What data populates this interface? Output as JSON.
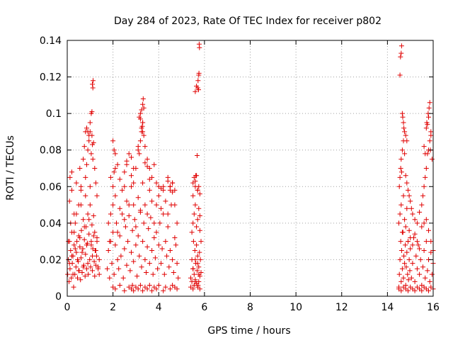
{
  "chart_data": {
    "type": "scatter",
    "title": "Day 284 of 2023, Rate Of TEC Index for receiver p802",
    "xlabel": "GPS time / hours",
    "ylabel": "ROTI / TECUs",
    "xlim": [
      0,
      16
    ],
    "ylim": [
      0,
      0.14
    ],
    "x_ticks": [
      0,
      2,
      4,
      6,
      8,
      10,
      12,
      14,
      16
    ],
    "x_tick_labels": [
      "0",
      "2",
      "4",
      "6",
      "8",
      "10",
      "12",
      "14",
      "16"
    ],
    "y_ticks": [
      0,
      0.02,
      0.04,
      0.06,
      0.08,
      0.1,
      0.12,
      0.14
    ],
    "y_tick_labels": [
      "0",
      "0.02",
      "0.04",
      "0.06",
      "0.08",
      "0.1",
      "0.12",
      "0.14"
    ],
    "grid": true,
    "marker": "+",
    "marker_color": "#e00000",
    "series": [
      {
        "name": "ROTI",
        "description_hint": "dense point clusters; values read from plot",
        "x": [
          0.02,
          0.05,
          0.08,
          0.1,
          0.12,
          0.15,
          0.18,
          0.2,
          0.22,
          0.25,
          0.28,
          0.3,
          0.33,
          0.35,
          0.38,
          0.4,
          0.42,
          0.45,
          0.48,
          0.5,
          0.52,
          0.55,
          0.58,
          0.6,
          0.62,
          0.65,
          0.68,
          0.7,
          0.72,
          0.75,
          0.78,
          0.8,
          0.82,
          0.85,
          0.88,
          0.9,
          0.92,
          0.95,
          0.98,
          1.0,
          1.02,
          1.05,
          1.08,
          1.1,
          1.12,
          1.15,
          1.18,
          1.2,
          1.22,
          1.25,
          1.28,
          1.3,
          1.35,
          1.4,
          0.05,
          0.1,
          0.15,
          0.2,
          0.25,
          0.3,
          0.35,
          0.4,
          0.45,
          0.5,
          0.55,
          0.6,
          0.65,
          0.7,
          0.75,
          0.8,
          0.85,
          0.9,
          0.95,
          1.0,
          1.05,
          1.1,
          1.15,
          1.2,
          1.25,
          1.3,
          1.35,
          1.4,
          0.1,
          0.2,
          0.3,
          0.5,
          0.6,
          0.8,
          0.85,
          0.9,
          0.95,
          1.0,
          1.05,
          1.08,
          1.1,
          1.12,
          1.2,
          1.25,
          1.3,
          1.1,
          1.12,
          1.13,
          1.05,
          1.08,
          0.85,
          0.9,
          0.95,
          1.0,
          1.15,
          0.12,
          0.2,
          0.4,
          0.55,
          0.6,
          0.7,
          0.75,
          0.8,
          1.75,
          1.8,
          1.85,
          1.9,
          1.95,
          2.0,
          2.05,
          2.1,
          2.15,
          2.2,
          2.25,
          2.3,
          2.35,
          2.4,
          2.45,
          2.5,
          2.55,
          2.6,
          2.65,
          2.7,
          2.75,
          2.8,
          2.85,
          2.9,
          2.95,
          3.0,
          3.05,
          3.1,
          3.15,
          3.2,
          3.25,
          3.3,
          3.35,
          3.4,
          3.45,
          3.5,
          3.55,
          3.6,
          3.65,
          3.7,
          3.75,
          3.8,
          3.85,
          3.9,
          3.95,
          4.0,
          4.05,
          4.1,
          4.15,
          4.2,
          4.25,
          4.3,
          4.35,
          4.4,
          4.45,
          4.5,
          4.55,
          4.6,
          4.65,
          4.7,
          4.75,
          4.8,
          4.85,
          1.8,
          1.85,
          1.9,
          2.0,
          2.1,
          2.2,
          2.3,
          2.4,
          2.5,
          2.6,
          2.7,
          2.8,
          2.9,
          3.0,
          3.1,
          3.2,
          3.3,
          3.4,
          3.5,
          3.6,
          3.7,
          3.8,
          3.9,
          4.0,
          4.1,
          4.2,
          4.3,
          4.4,
          4.5,
          4.6,
          4.7,
          4.8,
          1.9,
          2.0,
          2.05,
          2.1,
          2.3,
          2.5,
          2.6,
          2.7,
          2.8,
          2.9,
          3.0,
          3.1,
          3.15,
          3.2,
          3.25,
          3.3,
          3.35,
          3.4,
          3.5,
          3.6,
          3.7,
          3.8,
          4.0,
          4.2,
          4.4,
          4.5,
          4.6,
          4.7,
          2.0,
          2.05,
          2.1,
          2.2,
          2.5,
          2.6,
          2.8,
          2.9,
          3.1,
          3.15,
          3.2,
          3.25,
          3.3,
          3.32,
          3.35,
          3.3,
          3.25,
          3.2,
          3.28,
          3.3,
          3.4,
          3.5,
          3.6,
          3.9,
          4.1,
          4.4,
          4.5,
          4.6,
          2.0,
          2.1,
          2.3,
          2.5,
          2.7,
          2.8,
          2.85,
          2.9,
          3.0,
          3.1,
          3.2,
          3.3,
          3.4,
          3.5,
          3.6,
          3.7,
          3.8,
          3.9,
          4.0,
          4.2,
          4.3,
          4.5,
          4.6,
          4.7,
          4.8,
          5.4,
          5.45,
          5.5,
          5.52,
          5.55,
          5.58,
          5.6,
          5.62,
          5.65,
          5.68,
          5.7,
          5.72,
          5.75,
          5.78,
          5.8,
          5.82,
          5.85,
          5.45,
          5.5,
          5.55,
          5.6,
          5.65,
          5.7,
          5.75,
          5.8,
          5.85,
          5.5,
          5.6,
          5.7,
          5.8,
          5.5,
          5.55,
          5.6,
          5.65,
          5.7,
          5.75,
          5.8,
          5.6,
          5.65,
          5.7,
          5.72,
          5.75,
          5.76,
          5.78,
          5.77,
          5.74,
          5.68,
          5.62,
          5.4,
          5.45,
          5.5,
          5.55,
          5.6,
          5.65,
          5.7,
          5.75,
          5.8,
          5.5,
          5.6,
          5.7,
          5.75,
          14.5,
          14.52,
          14.55,
          14.58,
          14.6,
          14.62,
          14.65,
          14.68,
          14.7,
          14.72,
          14.75,
          14.78,
          14.8,
          14.82,
          14.85,
          14.88,
          14.9,
          14.92,
          14.95,
          14.98,
          15.0,
          15.05,
          15.1,
          15.15,
          15.2,
          15.25,
          15.3,
          15.35,
          15.4,
          15.45,
          15.5,
          15.55,
          15.6,
          15.65,
          15.7,
          15.75,
          15.8,
          15.85,
          15.9,
          15.95,
          16.0,
          14.5,
          14.55,
          14.6,
          14.65,
          14.7,
          14.75,
          14.8,
          14.85,
          14.9,
          14.95,
          15.0,
          15.1,
          15.2,
          15.3,
          15.4,
          15.5,
          15.6,
          15.7,
          15.8,
          15.9,
          16.0,
          14.52,
          14.55,
          14.58,
          14.6,
          14.62,
          14.65,
          14.7,
          14.75,
          14.8,
          14.85,
          14.9,
          14.95,
          15.0,
          15.05,
          15.1,
          15.2,
          15.3,
          15.4,
          15.5,
          15.55,
          15.6,
          15.65,
          15.7,
          15.75,
          15.8,
          15.85,
          15.9,
          15.95,
          14.55,
          14.57,
          14.6,
          14.62,
          14.65,
          14.67,
          14.7,
          14.72,
          14.75,
          14.8,
          14.85,
          15.6,
          15.65,
          15.7,
          15.72,
          15.75,
          15.78,
          15.8,
          15.82,
          15.85,
          15.88,
          15.9,
          14.5,
          14.6,
          14.7,
          14.8,
          14.9,
          15.0,
          15.1,
          15.2,
          15.3,
          15.4,
          15.5,
          15.6,
          15.7,
          15.8,
          15.9,
          16.0
        ],
        "y": [
          0.012,
          0.02,
          0.008,
          0.03,
          0.015,
          0.025,
          0.01,
          0.035,
          0.018,
          0.022,
          0.005,
          0.028,
          0.012,
          0.04,
          0.016,
          0.024,
          0.03,
          0.01,
          0.019,
          0.033,
          0.014,
          0.027,
          0.009,
          0.021,
          0.036,
          0.013,
          0.026,
          0.042,
          0.017,
          0.031,
          0.011,
          0.023,
          0.038,
          0.015,
          0.029,
          0.045,
          0.012,
          0.034,
          0.02,
          0.05,
          0.016,
          0.028,
          0.039,
          0.014,
          0.026,
          0.033,
          0.019,
          0.011,
          0.025,
          0.017,
          0.022,
          0.03,
          0.015,
          0.02,
          0.03,
          0.018,
          0.04,
          0.022,
          0.012,
          0.035,
          0.026,
          0.045,
          0.02,
          0.014,
          0.032,
          0.05,
          0.024,
          0.016,
          0.038,
          0.055,
          0.028,
          0.018,
          0.042,
          0.06,
          0.03,
          0.022,
          0.044,
          0.035,
          0.025,
          0.032,
          0.016,
          0.012,
          0.052,
          0.058,
          0.045,
          0.05,
          0.06,
          0.065,
          0.072,
          0.08,
          0.085,
          0.09,
          0.078,
          0.088,
          0.083,
          0.075,
          0.07,
          0.062,
          0.055,
          0.116,
          0.114,
          0.118,
          0.1,
          0.101,
          0.092,
          0.09,
          0.088,
          0.095,
          0.084,
          0.065,
          0.068,
          0.062,
          0.07,
          0.058,
          0.075,
          0.082,
          0.09,
          0.015,
          0.025,
          0.01,
          0.03,
          0.018,
          0.035,
          0.012,
          0.028,
          0.04,
          0.02,
          0.015,
          0.033,
          0.022,
          0.045,
          0.01,
          0.026,
          0.038,
          0.017,
          0.03,
          0.05,
          0.014,
          0.024,
          0.036,
          0.019,
          0.042,
          0.028,
          0.011,
          0.033,
          0.022,
          0.046,
          0.016,
          0.03,
          0.04,
          0.02,
          0.013,
          0.027,
          0.037,
          0.018,
          0.043,
          0.025,
          0.012,
          0.032,
          0.021,
          0.035,
          0.015,
          0.028,
          0.04,
          0.018,
          0.026,
          0.045,
          0.012,
          0.03,
          0.022,
          0.038,
          0.016,
          0.025,
          0.05,
          0.02,
          0.013,
          0.032,
          0.028,
          0.018,
          0.01,
          0.04,
          0.03,
          0.045,
          0.05,
          0.055,
          0.035,
          0.048,
          0.058,
          0.042,
          0.052,
          0.044,
          0.06,
          0.05,
          0.038,
          0.054,
          0.047,
          0.062,
          0.05,
          0.045,
          0.058,
          0.052,
          0.04,
          0.05,
          0.055,
          0.048,
          0.06,
          0.052,
          0.045,
          0.058,
          0.062,
          0.05,
          0.04,
          0.065,
          0.06,
          0.068,
          0.07,
          0.064,
          0.06,
          0.072,
          0.078,
          0.066,
          0.062,
          0.07,
          0.08,
          0.078,
          0.085,
          0.09,
          0.095,
          0.088,
          0.082,
          0.075,
          0.07,
          0.065,
          0.072,
          0.06,
          0.058,
          0.063,
          0.06,
          0.062,
          0.058,
          0.085,
          0.08,
          0.078,
          0.072,
          0.068,
          0.074,
          0.076,
          0.07,
          0.082,
          0.098,
          0.1,
          0.102,
          0.105,
          0.108,
          0.103,
          0.095,
          0.092,
          0.097,
          0.093,
          0.09,
          0.073,
          0.071,
          0.064,
          0.062,
          0.059,
          0.065,
          0.06,
          0.057,
          0.005,
          0.004,
          0.006,
          0.003,
          0.005,
          0.004,
          0.006,
          0.003,
          0.005,
          0.004,
          0.006,
          0.003,
          0.005,
          0.004,
          0.006,
          0.003,
          0.005,
          0.004,
          0.006,
          0.003,
          0.005,
          0.004,
          0.006,
          0.005,
          0.004,
          0.01,
          0.02,
          0.015,
          0.03,
          0.012,
          0.025,
          0.008,
          0.018,
          0.028,
          0.014,
          0.022,
          0.006,
          0.016,
          0.024,
          0.011,
          0.02,
          0.013,
          0.035,
          0.04,
          0.045,
          0.05,
          0.038,
          0.042,
          0.048,
          0.036,
          0.03,
          0.055,
          0.06,
          0.058,
          0.044,
          0.062,
          0.065,
          0.063,
          0.066,
          0.058,
          0.06,
          0.056,
          0.112,
          0.115,
          0.114,
          0.118,
          0.121,
          0.122,
          0.136,
          0.138,
          0.113,
          0.077,
          0.066,
          0.005,
          0.008,
          0.004,
          0.006,
          0.009,
          0.007,
          0.005,
          0.008,
          0.004,
          0.015,
          0.02,
          0.018,
          0.012,
          0.005,
          0.012,
          0.02,
          0.03,
          0.008,
          0.025,
          0.015,
          0.035,
          0.01,
          0.022,
          0.018,
          0.028,
          0.006,
          0.016,
          0.024,
          0.012,
          0.03,
          0.009,
          0.02,
          0.014,
          0.026,
          0.01,
          0.018,
          0.032,
          0.008,
          0.022,
          0.015,
          0.028,
          0.012,
          0.02,
          0.006,
          0.016,
          0.025,
          0.01,
          0.03,
          0.014,
          0.02,
          0.008,
          0.024,
          0.012,
          0.018,
          0.04,
          0.045,
          0.05,
          0.035,
          0.055,
          0.042,
          0.038,
          0.048,
          0.03,
          0.036,
          0.032,
          0.028,
          0.034,
          0.03,
          0.026,
          0.038,
          0.04,
          0.042,
          0.036,
          0.03,
          0.025,
          0.06,
          0.065,
          0.07,
          0.075,
          0.068,
          0.08,
          0.085,
          0.078,
          0.066,
          0.062,
          0.058,
          0.055,
          0.052,
          0.048,
          0.045,
          0.042,
          0.04,
          0.046,
          0.05,
          0.055,
          0.06,
          0.065,
          0.07,
          0.078,
          0.08,
          0.085,
          0.09,
          0.075,
          0.121,
          0.131,
          0.133,
          0.137,
          0.1,
          0.098,
          0.095,
          0.092,
          0.09,
          0.088,
          0.085,
          0.082,
          0.078,
          0.092,
          0.095,
          0.094,
          0.1,
          0.098,
          0.103,
          0.106,
          0.08,
          0.088,
          0.004,
          0.003,
          0.005,
          0.004,
          0.003,
          0.005,
          0.004,
          0.003,
          0.005,
          0.004,
          0.003,
          0.005,
          0.004,
          0.003,
          0.005,
          0.004
        ]
      }
    ]
  }
}
